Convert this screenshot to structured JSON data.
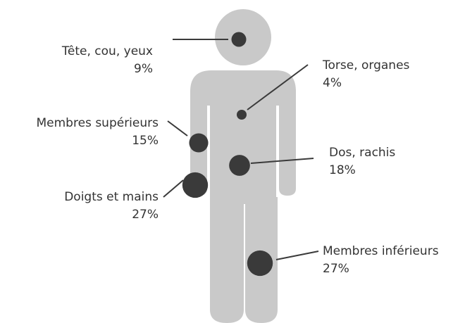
{
  "chart_data": {
    "type": "body-map",
    "categories": [
      "Tête, cou, yeux",
      "Torse, organes",
      "Membres supérieurs",
      "Dos, rachis",
      "Doigts et mains",
      "Membres inférieurs"
    ],
    "values": [
      9,
      4,
      15,
      18,
      27,
      27
    ],
    "value_labels": [
      "9%",
      "4%",
      "15%",
      "18%",
      "27%",
      "27%"
    ],
    "color": "#3a3a3a"
  }
}
